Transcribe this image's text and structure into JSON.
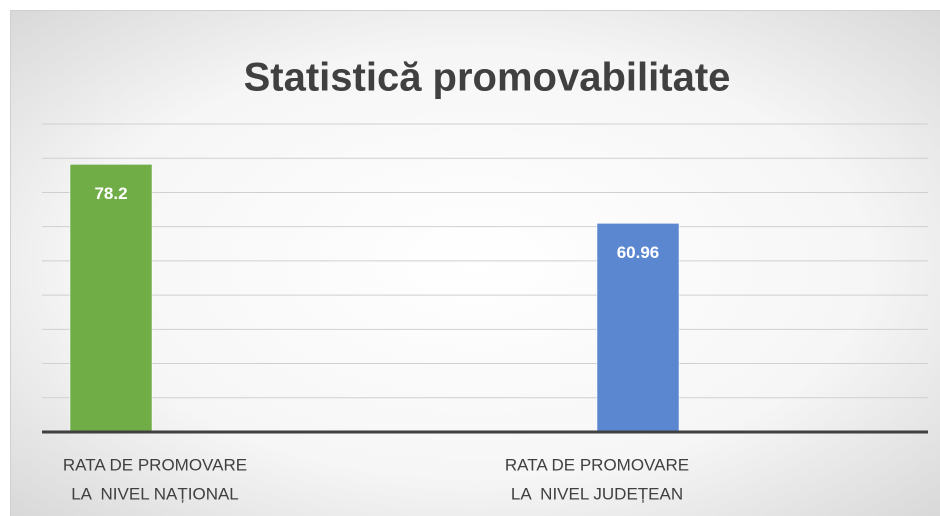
{
  "chart_data": {
    "type": "bar",
    "title": "Statistică promovabilitate",
    "categories": [
      [
        "RATA DE PROMOVARE",
        "LA  NIVEL NAȚIONAL"
      ],
      [
        "RATA DE PROMOVARE",
        "LA  NIVEL JUDEȚEAN"
      ]
    ],
    "values": [
      78.2,
      60.96
    ],
    "colors": [
      "#70ad47",
      "#5b87d0"
    ],
    "ylim": [
      0,
      90
    ],
    "yticks": [
      0,
      10,
      20,
      30,
      40,
      50,
      60,
      70,
      80,
      90
    ],
    "grid": true
  }
}
